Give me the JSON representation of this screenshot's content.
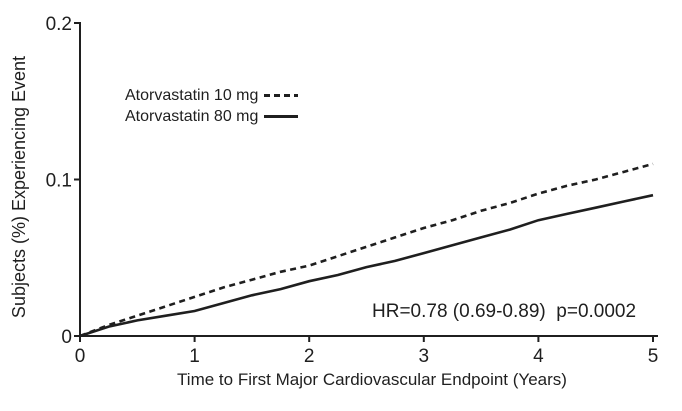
{
  "figure": {
    "background": "#ffffff",
    "ink_color": "#1f1f1f"
  },
  "chart_data": {
    "type": "line",
    "title": "",
    "xlabel": "Time to First Major Cardiovascular Endpoint (Years)",
    "ylabel": "Subjects (%) Experiencing Event",
    "xlim": [
      0,
      5
    ],
    "ylim": [
      0,
      0.2
    ],
    "x_ticks": [
      0,
      1,
      2,
      3,
      4,
      5
    ],
    "x_tick_labels": [
      "0",
      "1",
      "2",
      "3",
      "4",
      "5"
    ],
    "y_ticks": [
      0,
      0.1,
      0.2
    ],
    "y_tick_labels": [
      "0",
      "0.1",
      "0.2"
    ],
    "grid": false,
    "legend_position": "upper-left-inside",
    "annotation": "HR=0.78 (0.69-0.89)  p=0.0002",
    "x": [
      0,
      0.25,
      0.5,
      0.75,
      1,
      1.25,
      1.5,
      1.75,
      2,
      2.25,
      2.5,
      2.75,
      3,
      3.25,
      3.5,
      3.75,
      4,
      4.25,
      4.5,
      4.75,
      5
    ],
    "series": [
      {
        "name": "Atorvastatin 10 mg",
        "line_style": "dashed",
        "color": "#1f1f1f",
        "values": [
          0,
          0.007,
          0.013,
          0.019,
          0.025,
          0.031,
          0.036,
          0.041,
          0.045,
          0.051,
          0.057,
          0.063,
          0.069,
          0.074,
          0.08,
          0.085,
          0.091,
          0.096,
          0.1,
          0.105,
          0.11
        ]
      },
      {
        "name": "Atorvastatin 80 mg",
        "line_style": "solid",
        "color": "#1f1f1f",
        "values": [
          0,
          0.006,
          0.01,
          0.013,
          0.016,
          0.021,
          0.026,
          0.03,
          0.035,
          0.039,
          0.044,
          0.048,
          0.053,
          0.058,
          0.063,
          0.068,
          0.074,
          0.078,
          0.082,
          0.086,
          0.09
        ]
      }
    ]
  }
}
